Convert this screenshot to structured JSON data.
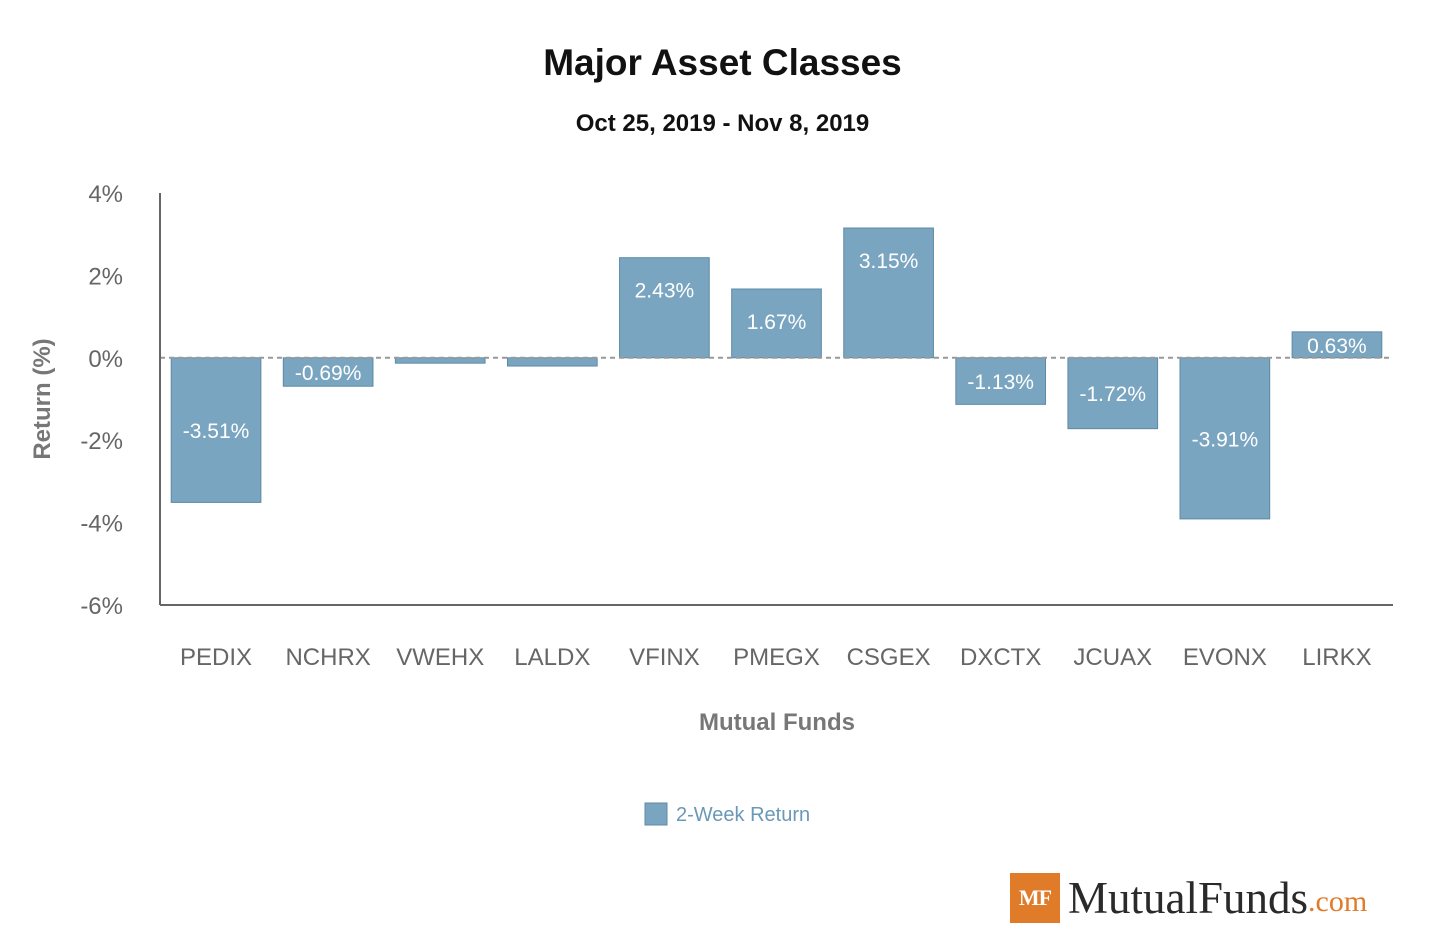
{
  "chart_data": {
    "type": "bar",
    "title": "Major Asset Classes",
    "subtitle": "Oct 25, 2019 - Nov 8, 2019",
    "xlabel": "Mutual Funds",
    "ylabel": "Return (%)",
    "ylim": [
      -6,
      4
    ],
    "yticks": [
      "4%",
      "2%",
      "0%",
      "-2%",
      "-4%",
      "-6%"
    ],
    "ytick_values": [
      4,
      2,
      0,
      -2,
      -4,
      -6
    ],
    "categories": [
      "PEDIX",
      "NCHRX",
      "VWEHX",
      "LALDX",
      "VFINX",
      "PMEGX",
      "CSGEX",
      "DXCTX",
      "JCUAX",
      "EVONX",
      "LIRKX"
    ],
    "series": [
      {
        "name": "2-Week Return",
        "values": [
          -3.51,
          -0.69,
          -0.13,
          -0.2,
          2.43,
          1.67,
          3.15,
          -1.13,
          -1.72,
          -3.91,
          0.63
        ],
        "labels": [
          "-3.51%",
          "-0.69%",
          "",
          "",
          "2.43%",
          "1.67%",
          "3.15%",
          "-1.13%",
          "-1.72%",
          "-3.91%",
          "0.63%"
        ]
      }
    ],
    "colors": {
      "bar": "#7aa5c0",
      "axis": "#666666",
      "zero_line": "#999999",
      "legend_text": "#6a98b8"
    },
    "grid": false,
    "legend_position": "bottom"
  },
  "brand": {
    "box": "MF",
    "name": "MutualFunds",
    "tld": ".com"
  }
}
